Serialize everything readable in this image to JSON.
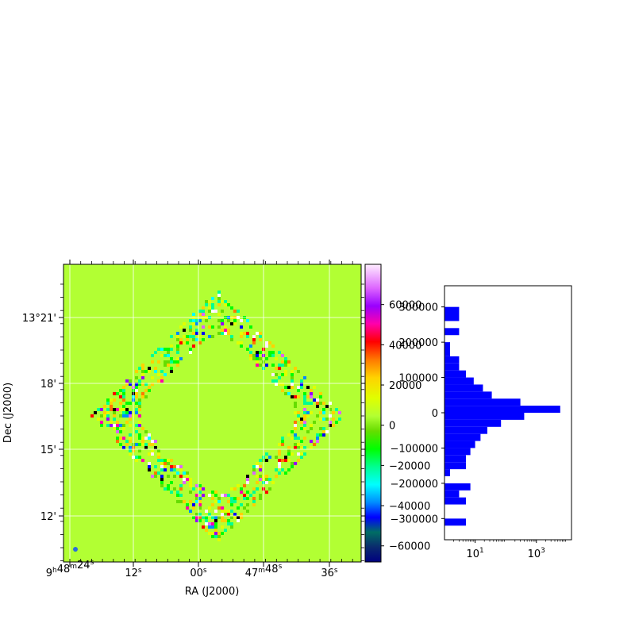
{
  "chart_data": [
    {
      "type": "heatmap",
      "title": "",
      "xlabel": "RA (J2000)",
      "ylabel": "Dec (J2000)",
      "x_ticks": [
        {
          "h": "9",
          "m": "48",
          "s": "24",
          "style": "full"
        },
        {
          "s": "12",
          "style": "sec"
        },
        {
          "s": "00",
          "style": "sec"
        },
        {
          "m": "47",
          "s": "48",
          "style": "min"
        },
        {
          "s": "36",
          "style": "sec"
        }
      ],
      "y_ticks": [
        "13°21'",
        "18'",
        "15'",
        "12'"
      ],
      "grid": true,
      "colormap": "gist_ncar",
      "background_color": "#b2ff33",
      "beam_color": "#2a6edb",
      "colorbar": {
        "range": [
          -68000,
          80000
        ],
        "ticks": [
          60000,
          40000,
          20000,
          0,
          -20000,
          -40000,
          -60000
        ],
        "tick_labels": [
          "60000",
          "40000",
          "20000",
          "0",
          "−20000",
          "−40000",
          "−60000"
        ]
      }
    },
    {
      "type": "bar",
      "orientation": "horizontal",
      "x_scale": "log",
      "x_ticks": [
        10,
        1000
      ],
      "y_ticks": [
        300000,
        200000,
        100000,
        0,
        -100000,
        -200000,
        -300000
      ],
      "y_tick_labels": [
        "300000",
        "200000",
        "100000",
        "0",
        "−100000",
        "−200000",
        "−300000"
      ],
      "ylim": [
        -360000,
        360000
      ],
      "bar_color": "#0000ff",
      "bins": [
        {
          "from": -320000,
          "to": -300000,
          "count": 5
        },
        {
          "from": -260000,
          "to": -240000,
          "count": 5
        },
        {
          "from": -240000,
          "to": -220000,
          "count": 3
        },
        {
          "from": -220000,
          "to": -200000,
          "count": 7
        },
        {
          "from": -180000,
          "to": -160000,
          "count": 1
        },
        {
          "from": -160000,
          "to": -140000,
          "count": 5
        },
        {
          "from": -140000,
          "to": -120000,
          "count": 5
        },
        {
          "from": -120000,
          "to": -100000,
          "count": 7
        },
        {
          "from": -100000,
          "to": -80000,
          "count": 10
        },
        {
          "from": -80000,
          "to": -60000,
          "count": 15
        },
        {
          "from": -60000,
          "to": -40000,
          "count": 25
        },
        {
          "from": -40000,
          "to": -20000,
          "count": 70
        },
        {
          "from": -20000,
          "to": 0,
          "count": 400
        },
        {
          "from": 0,
          "to": 20000,
          "count": 6000
        },
        {
          "from": 20000,
          "to": 40000,
          "count": 300
        },
        {
          "from": 40000,
          "to": 60000,
          "count": 35
        },
        {
          "from": 60000,
          "to": 80000,
          "count": 18
        },
        {
          "from": 80000,
          "to": 100000,
          "count": 9
        },
        {
          "from": 100000,
          "to": 120000,
          "count": 5
        },
        {
          "from": 120000,
          "to": 140000,
          "count": 3
        },
        {
          "from": 140000,
          "to": 160000,
          "count": 3
        },
        {
          "from": 160000,
          "to": 180000,
          "count": 1
        },
        {
          "from": 180000,
          "to": 200000,
          "count": 1
        },
        {
          "from": 220000,
          "to": 240000,
          "count": 3
        },
        {
          "from": 260000,
          "to": 300000,
          "count": 3
        }
      ]
    }
  ]
}
